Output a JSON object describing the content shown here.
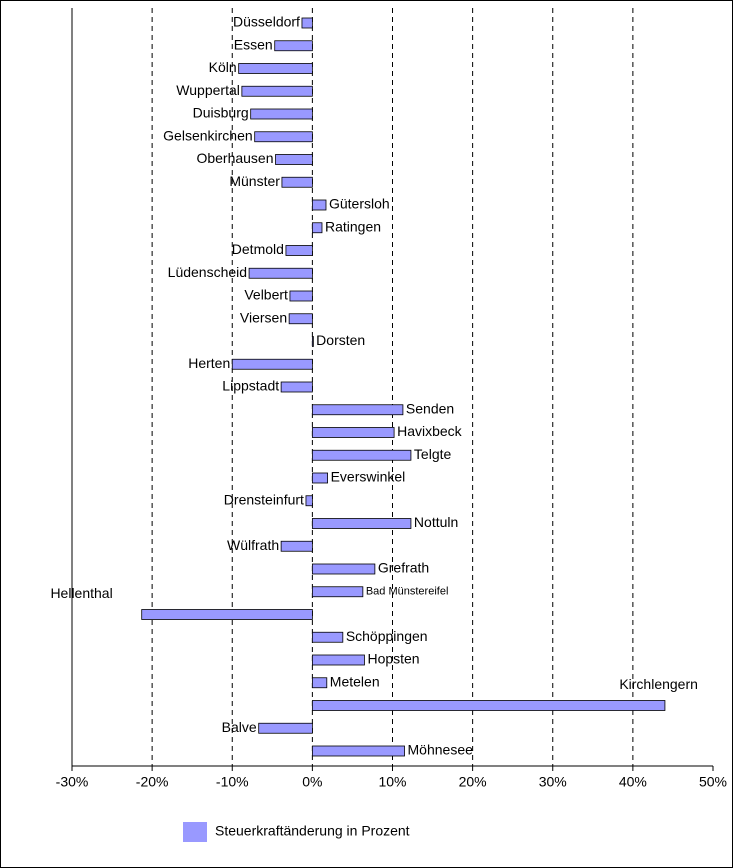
{
  "chart_data": {
    "type": "hbar",
    "categories": [
      "Düsseldorf",
      "Essen",
      "Köln",
      "Wuppertal",
      "Duisburg",
      "Gelsenkirchen",
      "Oberhausen",
      "Münster",
      "Gütersloh",
      "Ratingen",
      "Detmold",
      "Lüdenscheid",
      "Velbert",
      "Viersen",
      "Dorsten",
      "Herten",
      "Lippstadt",
      "Senden",
      "Havixbeck",
      "Telgte",
      "Everswinkel",
      "Drensteinfurt",
      "Nottuln",
      "Wülfrath",
      "Grefrath",
      "Bad Münstereifel",
      "Hellenthal",
      "Schöppingen",
      "Hopsten",
      "Metelen",
      "Kirchlengern",
      "Balve",
      "Möhnesee"
    ],
    "series": [
      {
        "name": "Steuerkraftänderung in Prozent",
        "color": "#9999ff",
        "values": [
          -1.3,
          -4.7,
          -9.2,
          -8.8,
          -7.7,
          -7.2,
          -4.6,
          -3.8,
          1.7,
          1.2,
          -3.3,
          -7.9,
          -2.8,
          -2.9,
          0.1,
          -10,
          -3.9,
          11.3,
          10.2,
          12.3,
          1.9,
          -0.8,
          12.3,
          -3.9,
          7.8,
          6.3,
          -21.3,
          3.8,
          6.5,
          1.8,
          44,
          -6.7,
          11.5
        ]
      }
    ],
    "xlim": [
      -30,
      50
    ],
    "xticks": [
      {
        "value": -30,
        "label": "-30%"
      },
      {
        "value": -20,
        "label": "-20%"
      },
      {
        "value": -10,
        "label": "-10%"
      },
      {
        "value": 0,
        "label": "0%"
      },
      {
        "value": 10,
        "label": "10%"
      },
      {
        "value": 20,
        "label": "20%"
      },
      {
        "value": 30,
        "label": "30%"
      },
      {
        "value": 40,
        "label": "40%"
      },
      {
        "value": 50,
        "label": "50%"
      }
    ],
    "grid": true,
    "legend": "bottom"
  }
}
